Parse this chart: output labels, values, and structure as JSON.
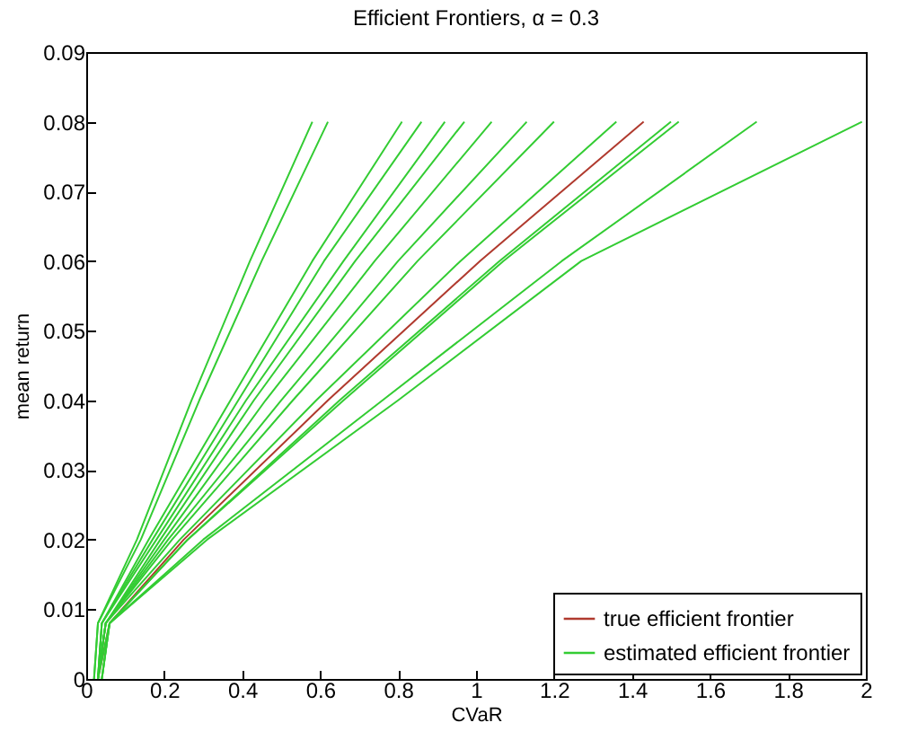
{
  "chart_data": {
    "type": "line",
    "title": "Efficient Frontiers, α = 0.3",
    "xlabel": "CVaR",
    "ylabel": "mean return",
    "xlim": [
      0,
      2
    ],
    "xticks": [
      0,
      0.2,
      0.4,
      0.6,
      0.8,
      1,
      1.2,
      1.4,
      1.6,
      1.8,
      2
    ],
    "ylim": [
      0,
      0.09
    ],
    "yticks": [
      0,
      0.01,
      0.02,
      0.03,
      0.04,
      0.05,
      0.06,
      0.07,
      0.08,
      0.09
    ],
    "grid": false,
    "legend": "bottom right",
    "line_style": "solid",
    "marker": "none",
    "series": [
      {
        "name": "true efficient frontier",
        "color": "#b03a2e",
        "x": [
          0.03,
          0.06,
          0.25,
          0.62,
          1.01,
          1.43
        ],
        "values": [
          0,
          0.008,
          0.02,
          0.04,
          0.06,
          0.08
        ]
      },
      {
        "name": "estimated efficient frontier",
        "color": "#33cc33",
        "x": [
          0.02,
          0.03,
          0.13,
          0.27,
          0.42,
          0.58
        ],
        "values": [
          0,
          0.008,
          0.02,
          0.04,
          0.06,
          0.08
        ]
      },
      {
        "color": "#33cc33",
        "x": [
          0.02,
          0.03,
          0.14,
          0.29,
          0.45,
          0.62
        ],
        "values": [
          0,
          0.008,
          0.02,
          0.04,
          0.06,
          0.08
        ]
      },
      {
        "color": "#33cc33",
        "x": [
          0.03,
          0.04,
          0.16,
          0.37,
          0.58,
          0.81
        ],
        "values": [
          0,
          0.008,
          0.02,
          0.04,
          0.06,
          0.08
        ]
      },
      {
        "color": "#33cc33",
        "x": [
          0.03,
          0.04,
          0.17,
          0.39,
          0.61,
          0.86
        ],
        "values": [
          0,
          0.008,
          0.02,
          0.04,
          0.06,
          0.08
        ]
      },
      {
        "color": "#33cc33",
        "x": [
          0.03,
          0.04,
          0.18,
          0.41,
          0.66,
          0.92
        ],
        "values": [
          0,
          0.008,
          0.02,
          0.04,
          0.06,
          0.08
        ]
      },
      {
        "color": "#33cc33",
        "x": [
          0.03,
          0.05,
          0.19,
          0.43,
          0.69,
          0.97
        ],
        "values": [
          0,
          0.008,
          0.02,
          0.04,
          0.06,
          0.08
        ]
      },
      {
        "color": "#33cc33",
        "x": [
          0.03,
          0.05,
          0.2,
          0.46,
          0.74,
          1.04
        ],
        "values": [
          0,
          0.008,
          0.02,
          0.04,
          0.06,
          0.08
        ]
      },
      {
        "color": "#33cc33",
        "x": [
          0.03,
          0.05,
          0.21,
          0.5,
          0.8,
          1.13
        ],
        "values": [
          0,
          0.008,
          0.02,
          0.04,
          0.06,
          0.08
        ]
      },
      {
        "color": "#33cc33",
        "x": [
          0.03,
          0.05,
          0.22,
          0.53,
          0.85,
          1.2
        ],
        "values": [
          0,
          0.008,
          0.02,
          0.04,
          0.06,
          0.08
        ]
      },
      {
        "color": "#33cc33",
        "x": [
          0.03,
          0.05,
          0.24,
          0.59,
          0.96,
          1.36
        ],
        "values": [
          0,
          0.008,
          0.02,
          0.04,
          0.06,
          0.08
        ]
      },
      {
        "color": "#33cc33",
        "x": [
          0.03,
          0.06,
          0.26,
          0.65,
          1.06,
          1.5
        ],
        "values": [
          0,
          0.008,
          0.02,
          0.04,
          0.06,
          0.08
        ]
      },
      {
        "color": "#33cc33",
        "x": [
          0.04,
          0.06,
          0.26,
          0.66,
          1.07,
          1.52
        ],
        "values": [
          0,
          0.008,
          0.02,
          0.04,
          0.06,
          0.08
        ]
      },
      {
        "color": "#33cc33",
        "x": [
          0.04,
          0.06,
          0.3,
          0.76,
          1.22,
          1.72
        ],
        "values": [
          0,
          0.008,
          0.02,
          0.04,
          0.06,
          0.08
        ]
      },
      {
        "color": "#33cc33",
        "x": [
          0.04,
          0.06,
          0.31,
          0.8,
          1.27,
          1.99
        ],
        "values": [
          0,
          0.008,
          0.02,
          0.04,
          0.06,
          0.08
        ]
      }
    ]
  }
}
